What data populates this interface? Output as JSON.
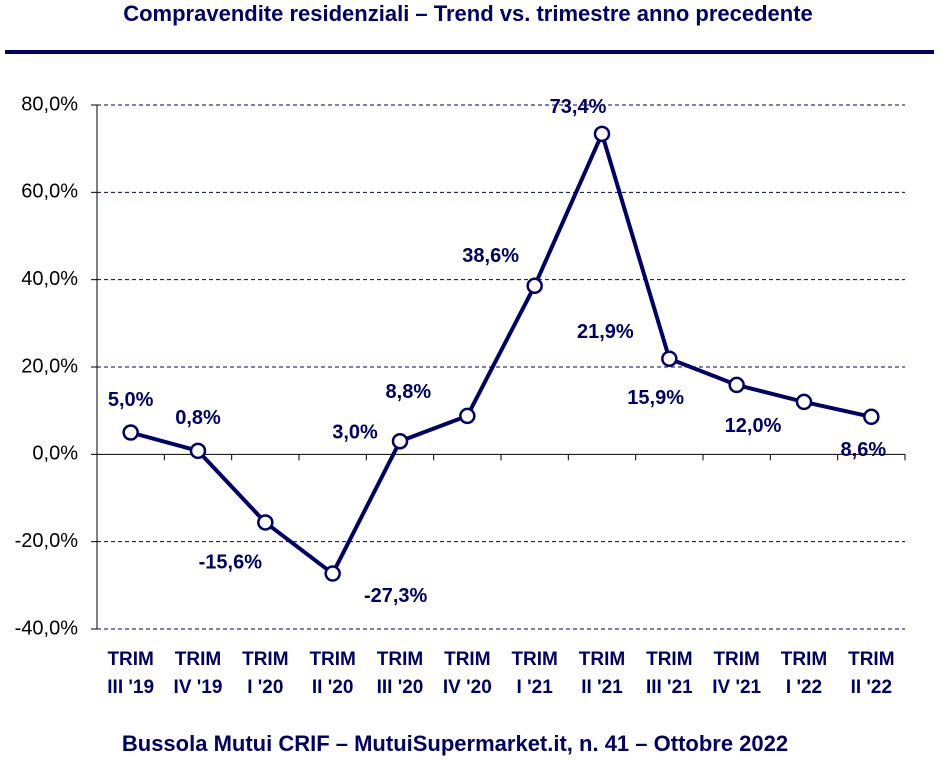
{
  "chart_data": {
    "type": "line",
    "title": "Compravendite residenziali – Trend vs. trimestre anno precedente",
    "footer": "Bussola Mutui CRIF – MutuiSupermarket.it, n. 41 – Ottobre 2022",
    "categories": [
      [
        "TRIM",
        "III '19"
      ],
      [
        "TRIM",
        "IV '19"
      ],
      [
        "TRIM",
        "I '20"
      ],
      [
        "TRIM",
        "II '20"
      ],
      [
        "TRIM",
        "III '20"
      ],
      [
        "TRIM",
        "IV '20"
      ],
      [
        "TRIM",
        "I '21"
      ],
      [
        "TRIM",
        "II '21"
      ],
      [
        "TRIM",
        "III '21"
      ],
      [
        "TRIM",
        "IV '21"
      ],
      [
        "TRIM",
        "I '22"
      ],
      [
        "TRIM",
        "II '22"
      ]
    ],
    "values": [
      5.0,
      0.8,
      -15.6,
      -27.3,
      3.0,
      8.8,
      38.6,
      73.4,
      21.9,
      15.9,
      12.0,
      8.6
    ],
    "value_labels": [
      "5,0%",
      "0,8%",
      "-15,6%",
      "-27,3%",
      "3,0%",
      "8,8%",
      "38,6%",
      "73,4%",
      "21,9%",
      "15,9%",
      "12,0%",
      "8,6%"
    ],
    "color": "#000066",
    "ylim": [
      -40,
      80
    ],
    "yticks": [
      {
        "value": -40,
        "label": "-40,0%"
      },
      {
        "value": -20,
        "label": "-20,0%"
      },
      {
        "value": 0,
        "label": "0,0%"
      },
      {
        "value": 20,
        "label": "20,0%"
      },
      {
        "value": 40,
        "label": "40,0%"
      },
      {
        "value": 60,
        "label": "60,0%"
      },
      {
        "value": 80,
        "label": "80,0%"
      }
    ],
    "grid": true
  }
}
